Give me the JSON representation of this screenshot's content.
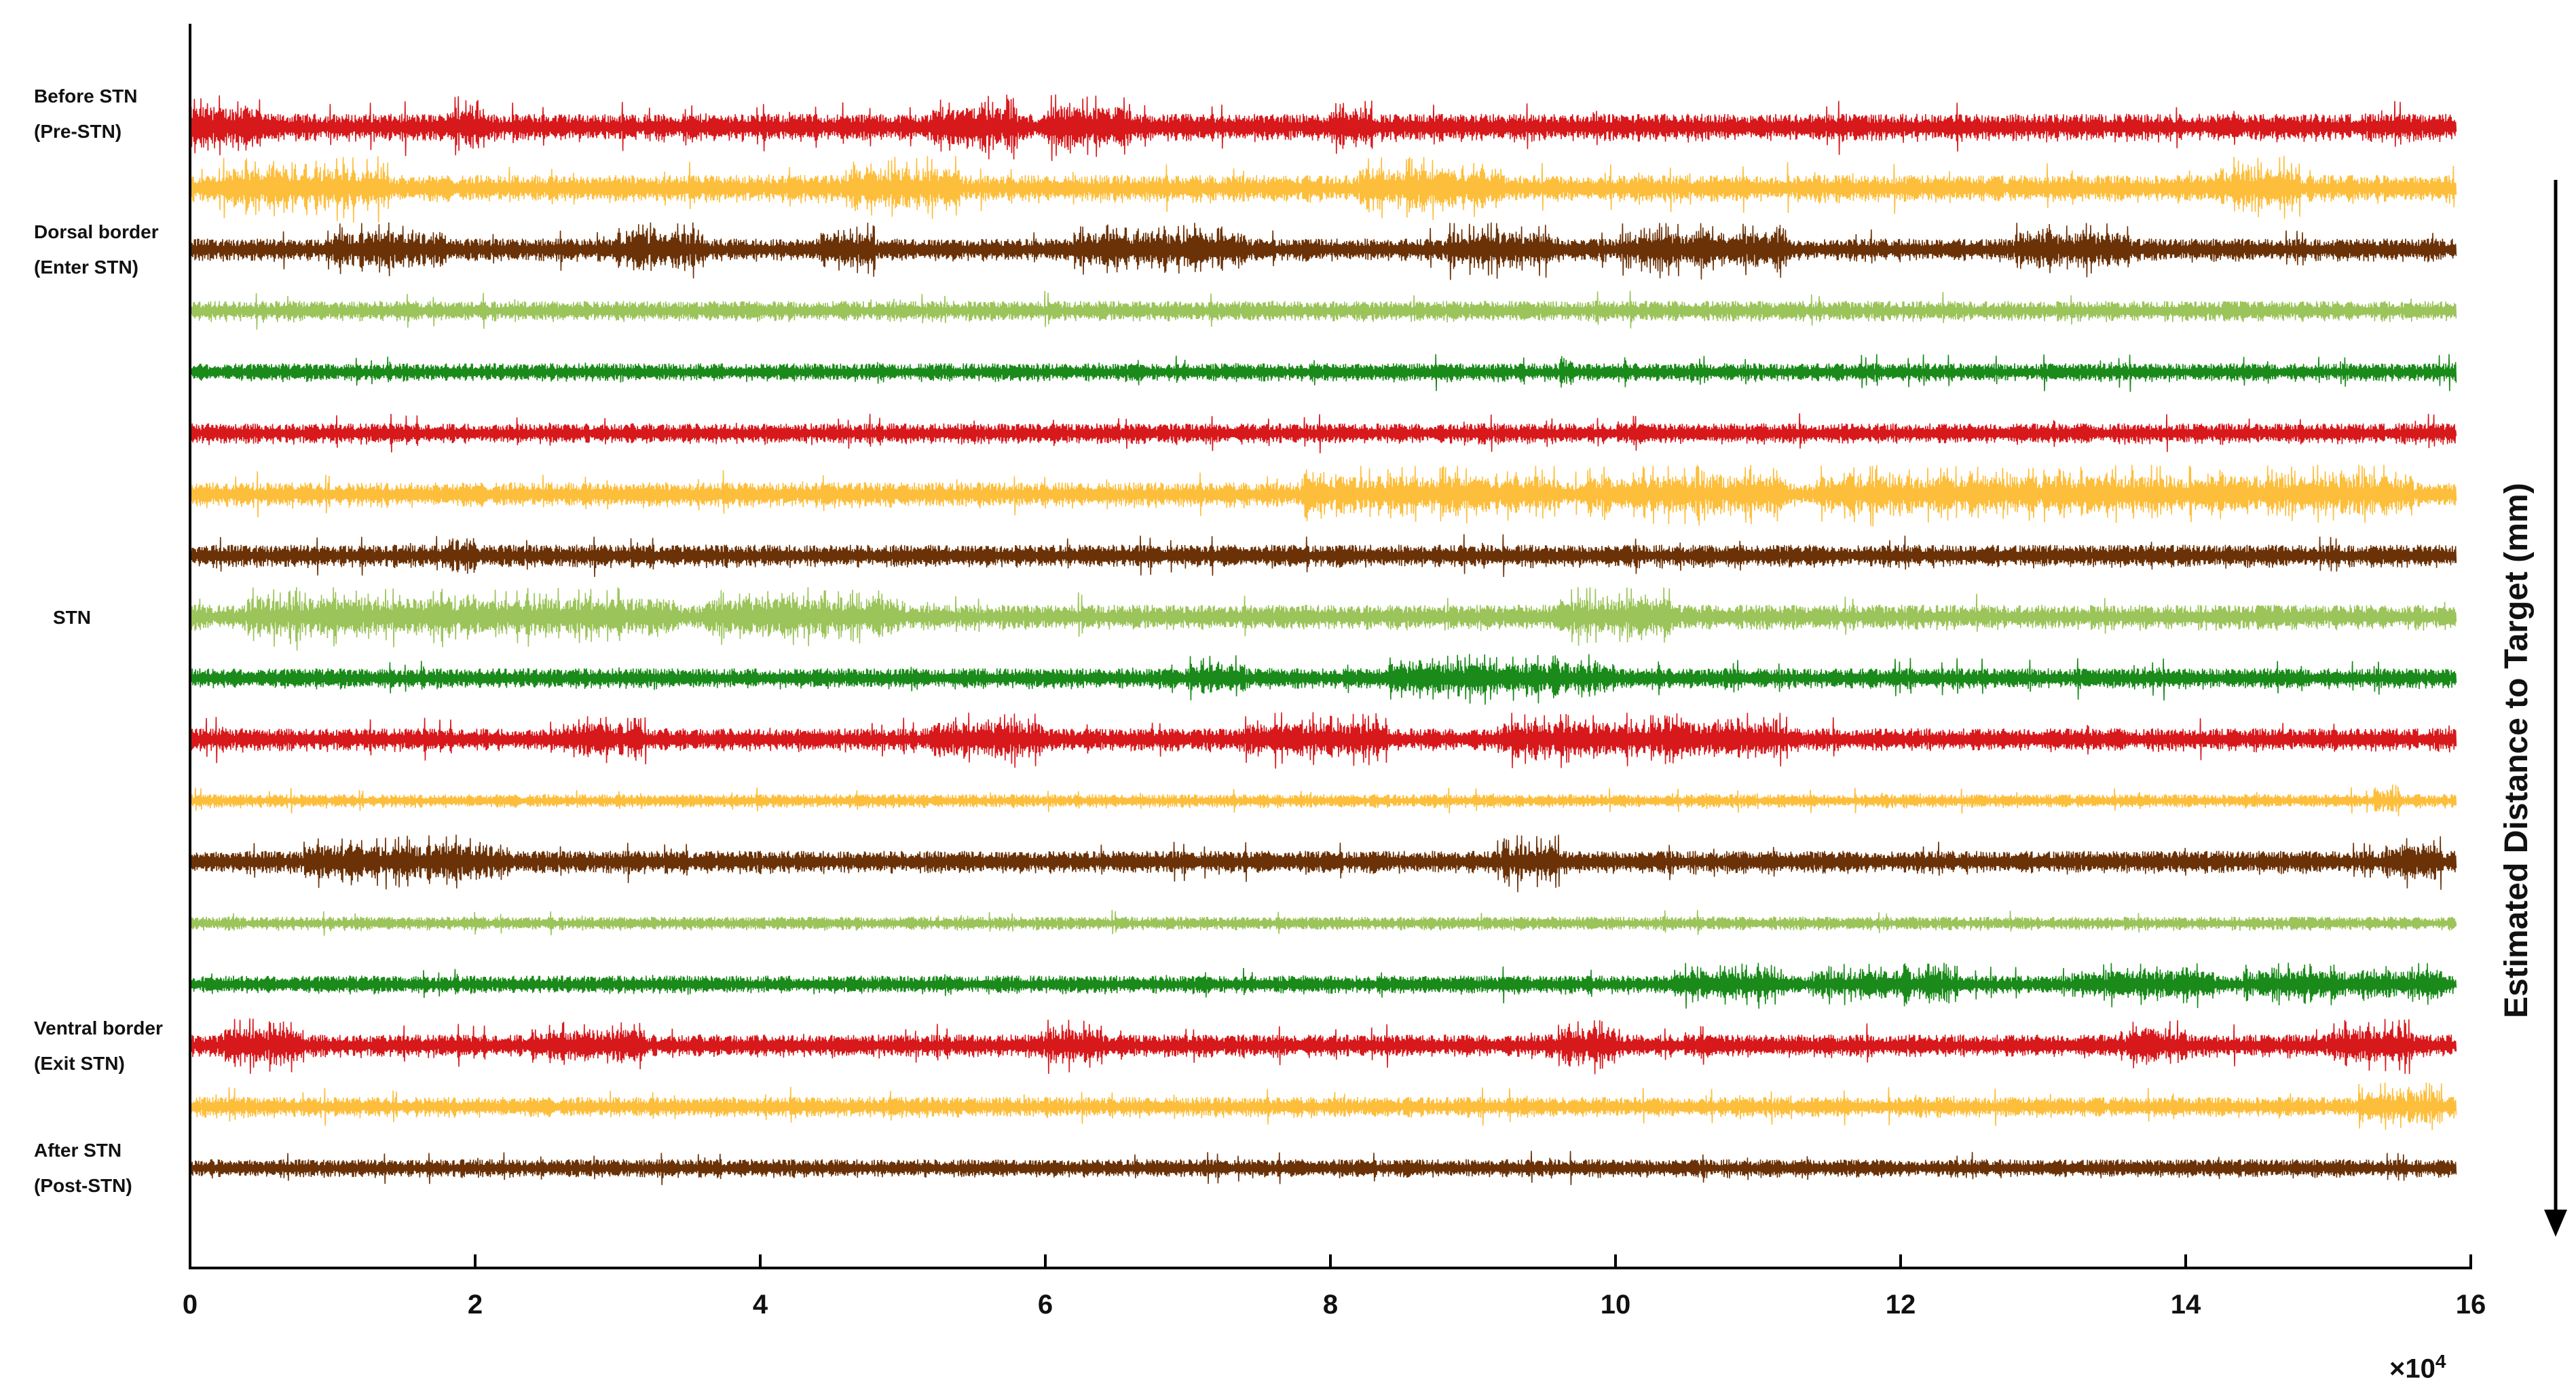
{
  "chart_data": {
    "type": "line",
    "x_multiplier_label": "×10",
    "x_multiplier_exponent": "4",
    "xlim": [
      0,
      16
    ],
    "xticks": [
      "0",
      "2",
      "4",
      "6",
      "8",
      "10",
      "12",
      "14",
      "16"
    ],
    "ylabel": "Estimated Distance to Target (mm)",
    "region_labels": [
      {
        "line1": "Before STN",
        "line2": "(Pre-STN)",
        "trace_index": 0
      },
      {
        "line1": "Dorsal border",
        "line2": "(Enter STN)",
        "trace_index": 2
      },
      {
        "line1": "STN",
        "line2": "",
        "trace_index": 8
      },
      {
        "line1": "Ventral border",
        "line2": "(Exit STN)",
        "trace_index": 15
      },
      {
        "line1": "After STN",
        "line2": "(Post-STN)",
        "trace_index": 17
      }
    ],
    "x_end": 15.9,
    "series": [
      {
        "color": "#d7191c",
        "amplitude": 0.6,
        "bursts": [
          [
            0,
            0.5
          ],
          [
            1.8,
            2.1
          ],
          [
            5.2,
            5.8
          ],
          [
            6.0,
            6.6
          ],
          [
            8.0,
            8.3
          ]
        ]
      },
      {
        "color": "#fdbe3c",
        "amplitude": 0.6,
        "bursts": [
          [
            0.2,
            1.4
          ],
          [
            4.6,
            5.4
          ],
          [
            8.2,
            9.2
          ],
          [
            14.2,
            14.8
          ]
        ]
      },
      {
        "color": "#6b3208",
        "amplitude": 0.5,
        "bursts": [
          [
            1.0,
            1.8
          ],
          [
            3.0,
            3.6
          ],
          [
            4.4,
            4.8
          ],
          [
            6.2,
            7.4
          ],
          [
            8.8,
            9.6
          ],
          [
            10.0,
            11.2
          ],
          [
            12.8,
            13.6
          ]
        ]
      },
      {
        "color": "#9bc45a",
        "amplitude": 0.45,
        "bursts": []
      },
      {
        "color": "#1a8a1a",
        "amplitude": 0.4,
        "bursts": [
          [
            9.6,
            9.7
          ]
        ]
      },
      {
        "color": "#d7191c",
        "amplitude": 0.45,
        "bursts": []
      },
      {
        "color": "#fdbe3c",
        "amplitude": 0.55,
        "bursts": [
          [
            7.8,
            9.6
          ],
          [
            9.8,
            11.2
          ],
          [
            11.4,
            12.8
          ],
          [
            12.8,
            15.6
          ]
        ]
      },
      {
        "color": "#6b3208",
        "amplitude": 0.5,
        "bursts": [
          [
            1.8,
            2.0
          ]
        ]
      },
      {
        "color": "#9bc45a",
        "amplitude": 0.55,
        "bursts": [
          [
            0.4,
            1.6
          ],
          [
            1.6,
            3.4
          ],
          [
            3.6,
            5.0
          ],
          [
            9.6,
            10.4
          ]
        ]
      },
      {
        "color": "#1a8a1a",
        "amplitude": 0.45,
        "bursts": [
          [
            7.0,
            7.4
          ],
          [
            8.4,
            10.0
          ]
        ]
      },
      {
        "color": "#d7191c",
        "amplitude": 0.5,
        "bursts": [
          [
            2.6,
            3.2
          ],
          [
            5.2,
            6.0
          ],
          [
            7.4,
            8.4
          ],
          [
            9.2,
            11.2
          ]
        ]
      },
      {
        "color": "#fdbe3c",
        "amplitude": 0.3,
        "bursts": [
          [
            15.3,
            15.5
          ]
        ]
      },
      {
        "color": "#6b3208",
        "amplitude": 0.5,
        "bursts": [
          [
            0.8,
            2.2
          ],
          [
            9.2,
            9.6
          ],
          [
            15.4,
            15.8
          ]
        ]
      },
      {
        "color": "#9bc45a",
        "amplitude": 0.3,
        "bursts": []
      },
      {
        "color": "#1a8a1a",
        "amplitude": 0.4,
        "bursts": [
          [
            10.4,
            11.2
          ],
          [
            11.4,
            12.4
          ],
          [
            13.2,
            14.2
          ],
          [
            14.4,
            15.8
          ]
        ]
      },
      {
        "color": "#d7191c",
        "amplitude": 0.5,
        "bursts": [
          [
            0.2,
            0.8
          ],
          [
            2.4,
            3.2
          ],
          [
            6.0,
            6.4
          ],
          [
            9.6,
            10.0
          ],
          [
            13.6,
            14.0
          ],
          [
            15.0,
            15.6
          ]
        ]
      },
      {
        "color": "#fdbe3c",
        "amplitude": 0.45,
        "bursts": [
          [
            15.2,
            15.8
          ]
        ]
      },
      {
        "color": "#6b3208",
        "amplitude": 0.4,
        "bursts": []
      }
    ]
  }
}
